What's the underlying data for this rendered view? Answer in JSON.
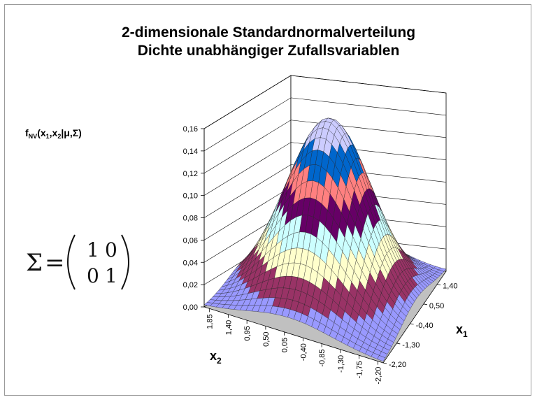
{
  "chart_data": {
    "type": "surface",
    "title": [
      "2-dimensionale Standardnormalverteilung",
      "Dichte unabhängiger Zufallsvariablen"
    ],
    "zlabel": {
      "main": "f",
      "sub": "NV",
      "args": "(x",
      "a1": "1",
      "comma": ",x",
      "a2": "2",
      "rest": "|μ,Σ)"
    },
    "xlabel": {
      "main": "x",
      "sub": "1"
    },
    "ylabel": {
      "main": "x",
      "sub": "2"
    },
    "z_ticks": [
      "0,00",
      "0,02",
      "0,04",
      "0,06",
      "0,08",
      "0,10",
      "0,12",
      "0,14",
      "0,16"
    ],
    "x1_ticks": [
      "-2,20",
      "-1,30",
      "-0,40",
      "0,50",
      "1,40"
    ],
    "x2_ticks": [
      "1,85",
      "1,40",
      "0,95",
      "0,50",
      "0,05",
      "-0,40",
      "-0,85",
      "-1,30",
      "-1,75",
      "-2,20"
    ],
    "zlim": [
      0,
      0.16
    ],
    "x1_range": [
      -2.2,
      2.0
    ],
    "x2_range": [
      -2.2,
      2.0
    ],
    "band_step": 0.02,
    "band_colors": [
      "#9999ff",
      "#993366",
      "#ffffcc",
      "#ccffff",
      "#660066",
      "#ff8080",
      "#0066cc",
      "#ccccff"
    ],
    "covariance": {
      "symbol": "Σ",
      "equals": "=",
      "matrix": [
        [
          "1",
          "0"
        ],
        [
          "0",
          "1"
        ]
      ]
    }
  }
}
